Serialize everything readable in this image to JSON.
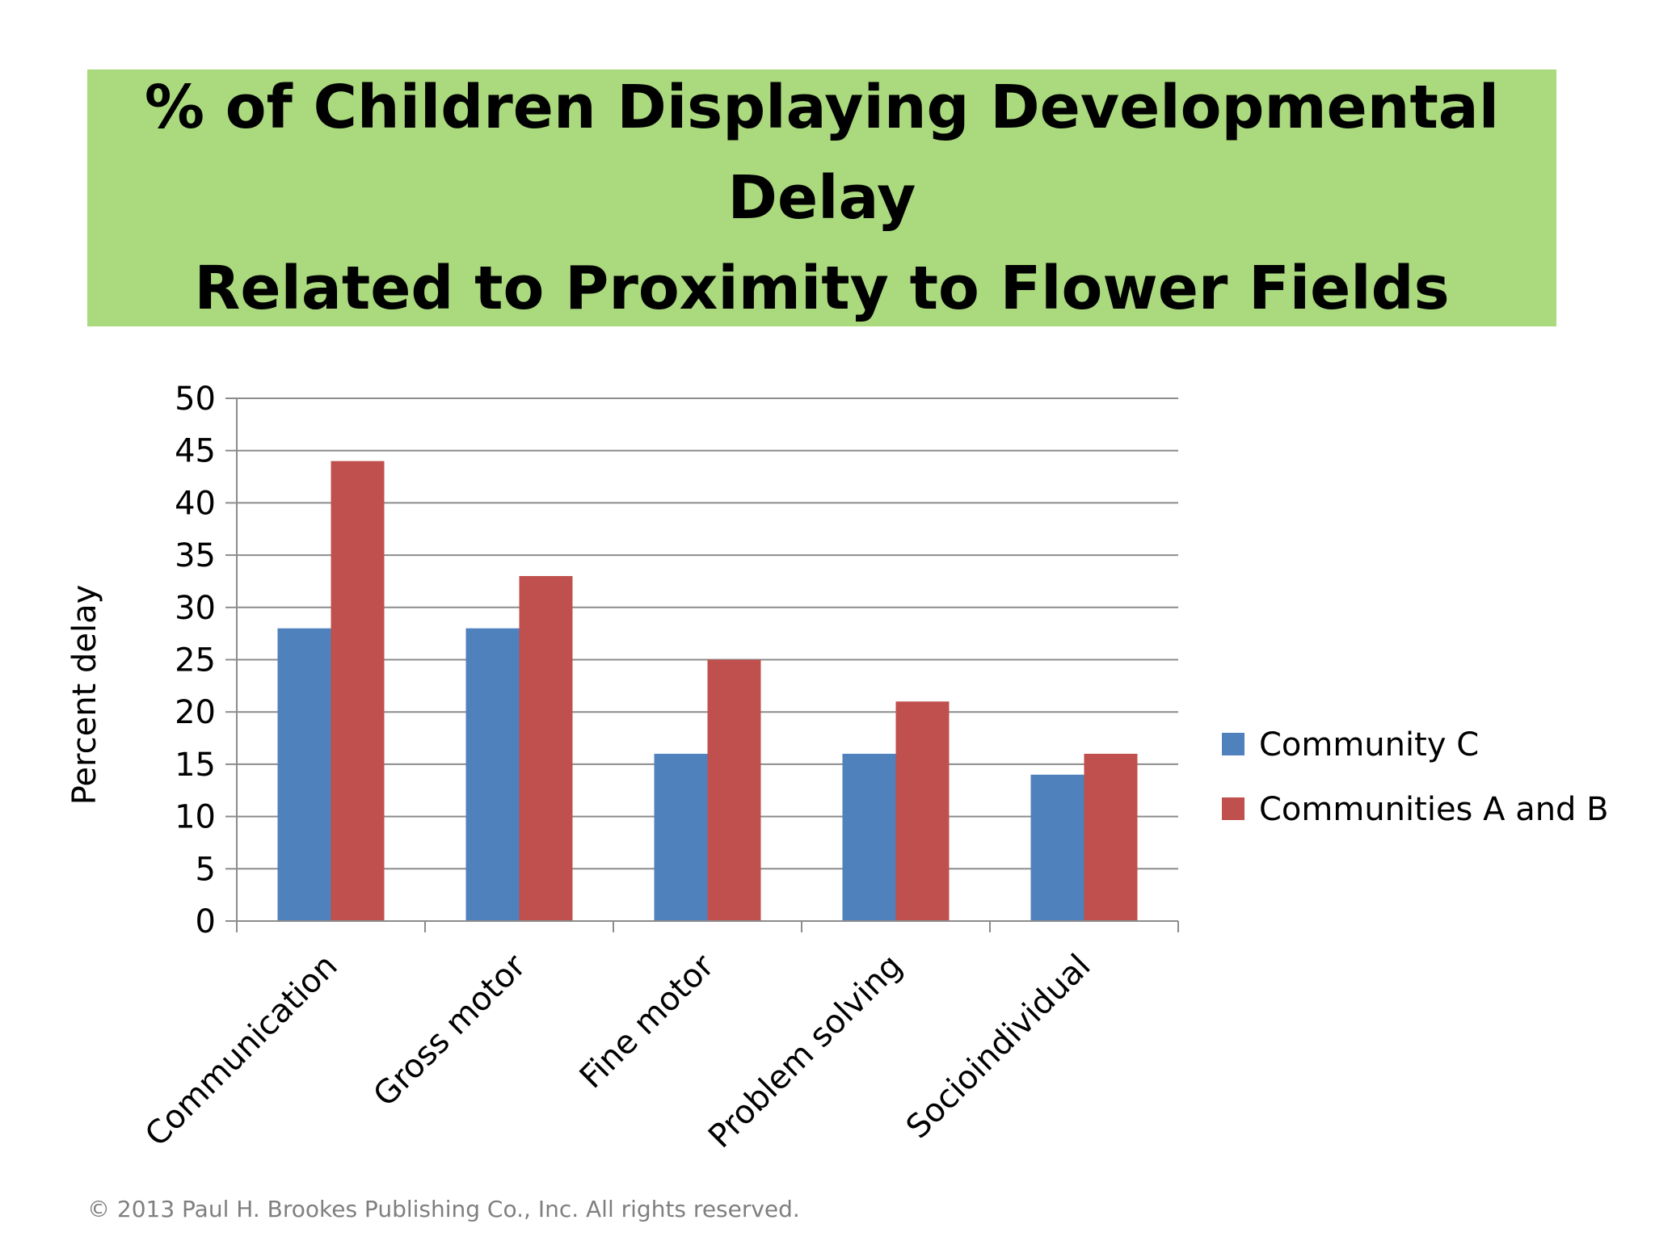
{
  "slide": {
    "title": "% of Children Displaying Developmental Delay\nRelated to Proximity to Flower Fields",
    "banner_color": "#aad97e",
    "copyright": "© 2013 Paul H. Brookes Publishing Co., Inc. All rights reserved."
  },
  "chart_data": {
    "type": "bar",
    "categories": [
      "Communication",
      "Gross motor",
      "Fine motor",
      "Problem solving",
      "Socioindividual"
    ],
    "series": [
      {
        "name": "Community C",
        "values": [
          28,
          28,
          16,
          16,
          14
        ],
        "color": "#4f81bd"
      },
      {
        "name": "Communities A and B",
        "values": [
          44,
          33,
          25,
          21,
          16
        ],
        "color": "#c0504d"
      }
    ],
    "xlabel": "",
    "ylabel": "Percent delay",
    "ylim": [
      0,
      50
    ],
    "yticks": [
      0,
      5,
      10,
      15,
      20,
      25,
      30,
      35,
      40,
      45,
      50
    ],
    "grid": true,
    "legend_position": "right"
  }
}
